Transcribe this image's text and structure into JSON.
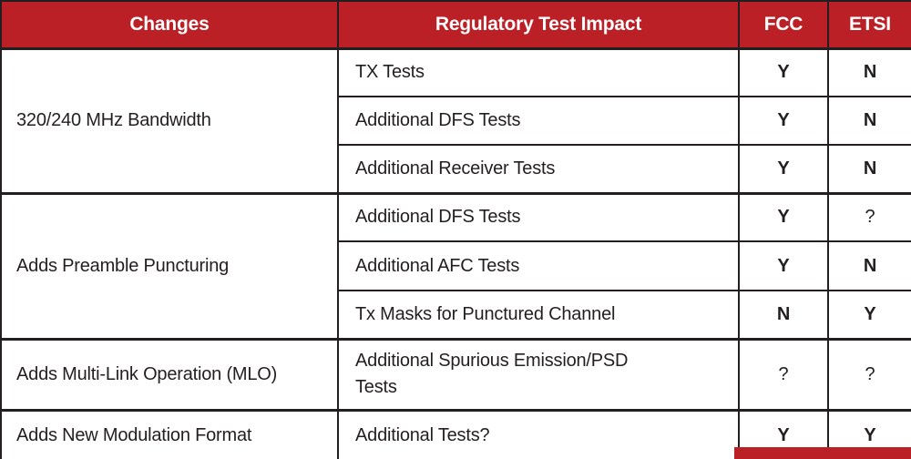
{
  "table": {
    "header": {
      "changes": "Changes",
      "impact": "Regulatory Test Impact",
      "fcc": "FCC",
      "etsi": "ETSI"
    },
    "groups": [
      {
        "change": "320/240 MHz Bandwidth",
        "rows": [
          {
            "impact": "TX Tests",
            "fcc": "Y",
            "etsi": "N"
          },
          {
            "impact": "Additional DFS Tests",
            "fcc": "Y",
            "etsi": "N"
          },
          {
            "impact": "Additional Receiver Tests",
            "fcc": "Y",
            "etsi": "N"
          }
        ]
      },
      {
        "change": "Adds Preamble Puncturing",
        "rows": [
          {
            "impact": "Additional DFS Tests",
            "fcc": "Y",
            "etsi": "?"
          },
          {
            "impact": "Additional AFC Tests",
            "fcc": "Y",
            "etsi": "N"
          },
          {
            "impact": "Tx Masks for Punctured Channel",
            "fcc": "N",
            "etsi": "Y"
          }
        ]
      },
      {
        "change": "Adds Multi-Link Operation (MLO)",
        "rows": [
          {
            "impact": "Additional Spurious Emission/PSD Tests",
            "fcc": "?",
            "etsi": "?"
          }
        ]
      },
      {
        "change": "Adds New Modulation Format",
        "rows": [
          {
            "impact": "Additional Tests?",
            "fcc": "Y",
            "etsi": "Y"
          }
        ]
      }
    ]
  },
  "colors": {
    "header_bg": "#ba2025",
    "header_text": "#ffffff",
    "grid_line": "#231f20",
    "body_text": "#231f20",
    "next_section_bar": "#ba2025"
  }
}
